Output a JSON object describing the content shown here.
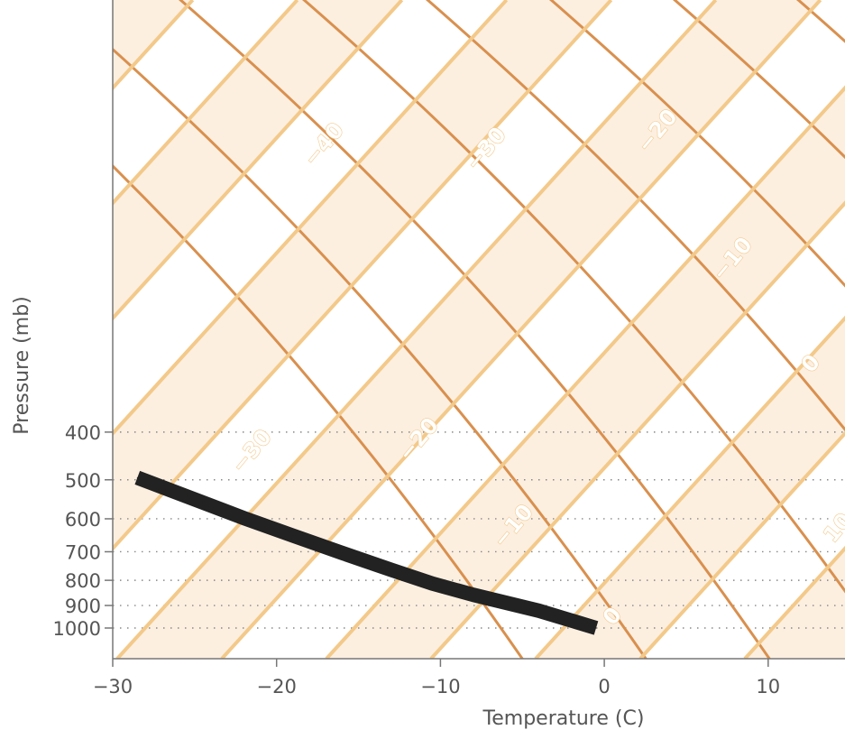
{
  "chart_data": {
    "type": "line",
    "title": "",
    "xlabel": "Temperature (C)",
    "ylabel": "Pressure (mb)",
    "xlim": [
      -30,
      14.5
    ],
    "ylim": [
      1035,
      360
    ],
    "y_scale": "log",
    "x_ticks": [
      "−30",
      "−20",
      "−10",
      "0",
      "10"
    ],
    "x_tick_values": [
      -30,
      -20,
      -10,
      0,
      10
    ],
    "y_ticks": [
      "400",
      "500",
      "600",
      "700",
      "800",
      "900",
      "1000"
    ],
    "y_tick_values": [
      400,
      500,
      600,
      700,
      800,
      900,
      1000
    ],
    "grid": "dotted horizontal lines at pressure ticks",
    "isotherm_labels": [
      "−40",
      "−30",
      "−20",
      "−30",
      "−20",
      "−10",
      "−10",
      "0",
      "0",
      "10"
    ],
    "isotherm_values": [
      -40,
      -30,
      -20,
      -30,
      -20,
      -10,
      -10,
      0,
      0,
      10
    ],
    "colors": {
      "band_fill": "#fcefe0",
      "isotherm": "#f3c98a",
      "adiabat": "#d9904e",
      "profile": "#222222",
      "grid": "#888888",
      "axis": "#777777",
      "text": "#555555"
    },
    "series": [
      {
        "x": [
          -28.5,
          -25,
          -22,
          -19,
          -16,
          -13,
          -10.5,
          -8,
          -4,
          -0.5
        ],
        "y": [
          495,
          548,
          598,
          649,
          704,
          762,
          812,
          856,
          922,
          1000
        ]
      }
    ]
  }
}
